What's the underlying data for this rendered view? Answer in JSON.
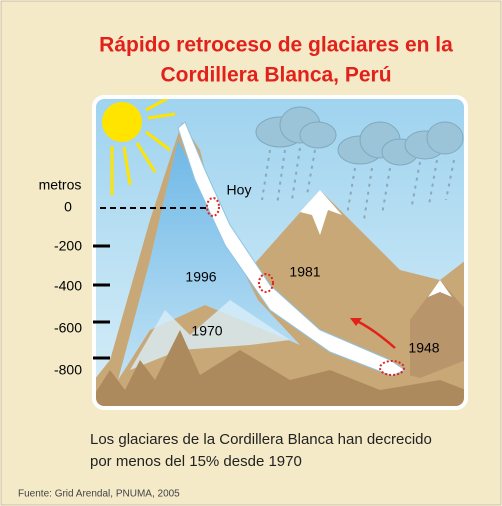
{
  "title": {
    "line1": "Rápido retroceso de glaciares en la",
    "line2": "Cordillera Blanca, Perú"
  },
  "axis": {
    "label": "metros",
    "ticks": [
      "0",
      "-200",
      "-400",
      "-600",
      "-800"
    ]
  },
  "labels": {
    "today": "Hoy",
    "y1996": "1996",
    "y1981": "1981",
    "y1970": "1970",
    "y1948": "1948"
  },
  "caption": {
    "line1": "Los glaciares de la Cordillera Blanca han decrecido",
    "line2": "por menos del 15% desde 1970"
  },
  "source": "Fuente: Grid Arendal, PNUMA, 2005"
}
